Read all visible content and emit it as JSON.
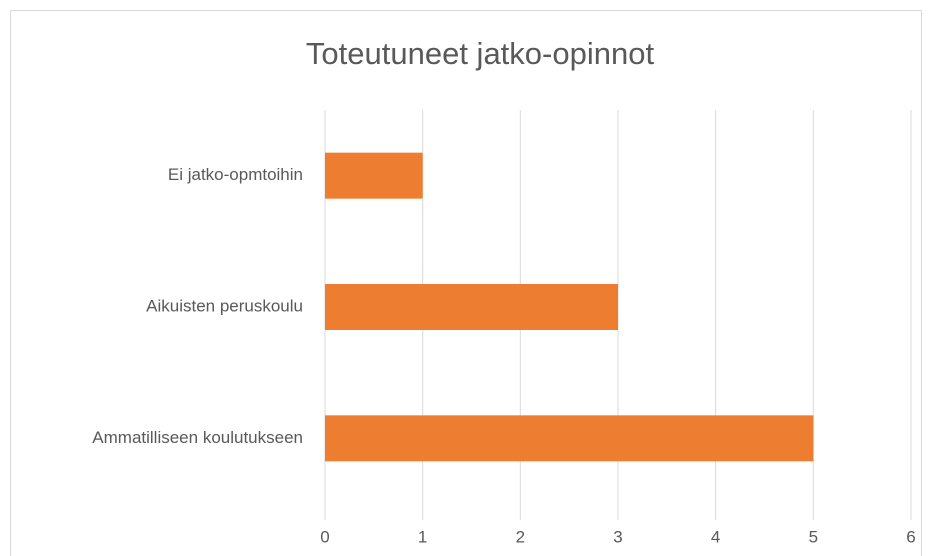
{
  "chart_data": {
    "type": "bar",
    "orientation": "horizontal",
    "title": "Toteutuneet jatko-opinnot",
    "categories": [
      "Ei jatko-opmtoihin",
      "Aikuisten peruskoulu",
      "Ammatilliseen koulutukseen"
    ],
    "values": [
      1,
      3,
      5
    ],
    "color": "#ed7d31",
    "xlim": [
      0,
      6
    ],
    "xticks": [
      0,
      1,
      2,
      3,
      4,
      5,
      6
    ],
    "grid": true
  }
}
